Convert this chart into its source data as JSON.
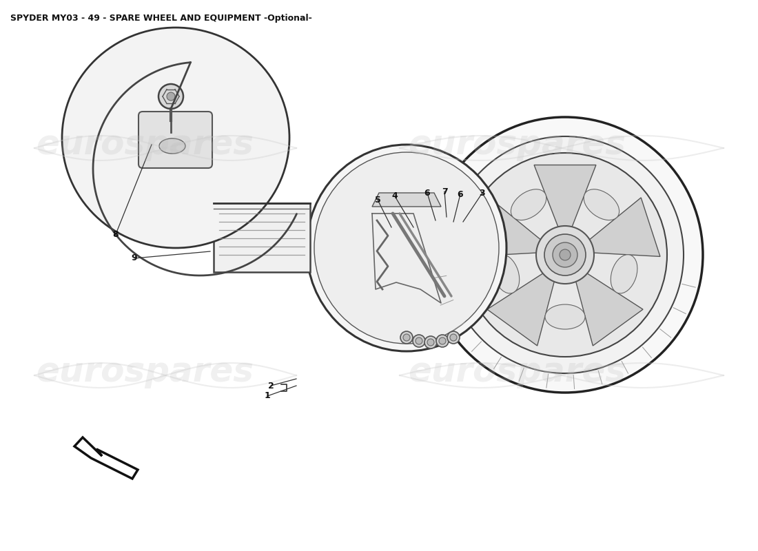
{
  "title": "SPYDER MY03 - 49 - SPARE WHEEL AND EQUIPMENT -Optional-",
  "title_fontsize": 9,
  "title_fontweight": "bold",
  "background_color": "#ffffff",
  "watermark_text": "eurospares",
  "watermark_color": "#bbbbbb",
  "watermark_fontsize": 36,
  "label_fontsize": 9
}
